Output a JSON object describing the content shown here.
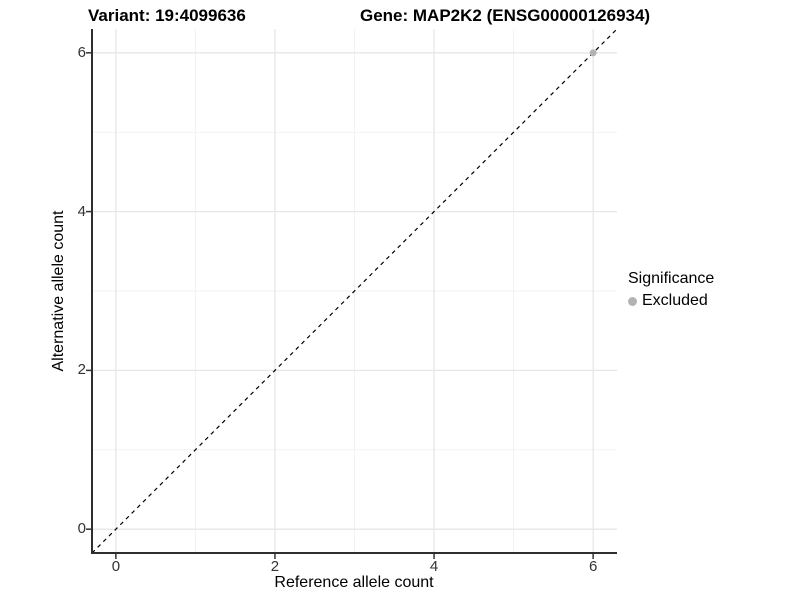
{
  "header": {
    "left_title": "Variant: 19:4099636",
    "right_title": "Gene: MAP2K2 (ENSG00000126934)"
  },
  "chart_data": {
    "type": "scatter",
    "title_left": "Variant: 19:4099636",
    "title_right": "Gene: MAP2K2 (ENSG00000126934)",
    "xlabel": "Reference allele count",
    "ylabel": "Alternative allele count",
    "xlim": [
      -0.3,
      6.3
    ],
    "ylim": [
      -0.3,
      6.3
    ],
    "x_ticks": [
      0,
      2,
      4,
      6
    ],
    "y_ticks": [
      0,
      2,
      4,
      6
    ],
    "x_minor_ticks": [
      1,
      3,
      5
    ],
    "y_minor_ticks": [
      1,
      3,
      5
    ],
    "grid": true,
    "reference_line": {
      "type": "identity",
      "style": "dashed",
      "color": "#000000"
    },
    "series": [
      {
        "name": "Excluded",
        "color": "#b3b3b3",
        "points": [
          {
            "x": 6,
            "y": 6
          }
        ]
      }
    ],
    "legend": {
      "title": "Significance",
      "position": "right",
      "items": [
        {
          "label": "Excluded",
          "color": "#b3b3b3"
        }
      ]
    }
  },
  "colors": {
    "background": "#ffffff",
    "grid_major": "#e7e7e7",
    "grid_minor": "#f2f2f2",
    "axis_line": "#2e2e2e",
    "tick_mark": "#333333",
    "point": "#b3b3b3"
  }
}
